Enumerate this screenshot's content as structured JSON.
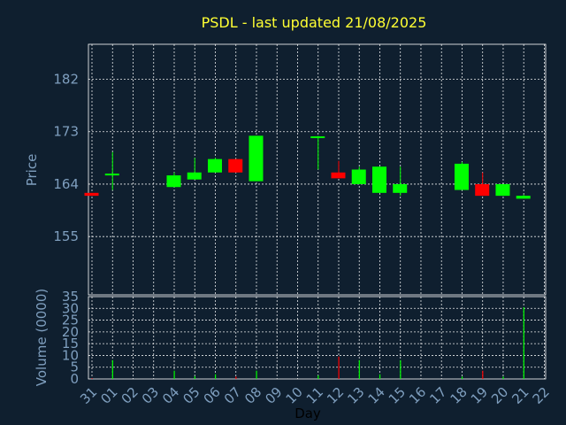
{
  "chart_data": {
    "type": "candlestick",
    "title": "PSDL - last updated 21/08/2025",
    "ylabel": "Price",
    "volume_ylabel": "Volume (0000)",
    "xlabel": "Day",
    "x_ticks": [
      "31",
      "01",
      "02",
      "03",
      "04",
      "05",
      "06",
      "07",
      "08",
      "09",
      "10",
      "11",
      "12",
      "13",
      "14",
      "15",
      "16",
      "17",
      "18",
      "19",
      "20",
      "21",
      "22"
    ],
    "price_ticks": [
      155,
      164,
      173,
      182
    ],
    "price_ylim": [
      145,
      188
    ],
    "volume_ticks": [
      0,
      5,
      10,
      15,
      20,
      25,
      30,
      35
    ],
    "volume_ylim": [
      0,
      35
    ],
    "colors": {
      "up": "#00ff00",
      "down": "#ff0000",
      "background": "#0f1f2f",
      "title": "#ffff33",
      "tick": "#7f9fbf"
    },
    "candles": [
      {
        "day": "31",
        "open": 162.5,
        "high": 162.5,
        "low": 162.0,
        "close": 162.0,
        "volume": 0.3
      },
      {
        "day": "01",
        "open": 165.5,
        "high": 169.5,
        "low": 163.0,
        "close": 165.8,
        "volume": 8.0
      },
      {
        "day": "04",
        "open": 163.5,
        "high": 166.0,
        "low": 163.5,
        "close": 165.5,
        "volume": 3.5
      },
      {
        "day": "05",
        "open": 164.8,
        "high": 168.5,
        "low": 164.8,
        "close": 166.0,
        "volume": 1.2
      },
      {
        "day": "06",
        "open": 166.0,
        "high": 168.5,
        "low": 166.0,
        "close": 168.3,
        "volume": 2.0
      },
      {
        "day": "07",
        "open": 168.3,
        "high": 168.3,
        "low": 166.0,
        "close": 166.0,
        "volume": 1.0
      },
      {
        "day": "08",
        "open": 164.5,
        "high": 172.3,
        "low": 164.5,
        "close": 172.3,
        "volume": 3.5
      },
      {
        "day": "11",
        "open": 172.0,
        "high": 172.3,
        "low": 166.5,
        "close": 172.2,
        "volume": 1.5
      },
      {
        "day": "12",
        "open": 166.0,
        "high": 168.0,
        "low": 165.0,
        "close": 165.0,
        "volume": 9.5
      },
      {
        "day": "13",
        "open": 164.0,
        "high": 167.0,
        "low": 164.0,
        "close": 166.5,
        "volume": 8.0
      },
      {
        "day": "14",
        "open": 162.5,
        "high": 167.0,
        "low": 162.5,
        "close": 167.0,
        "volume": 2.0
      },
      {
        "day": "15",
        "open": 162.5,
        "high": 167.0,
        "low": 162.0,
        "close": 164.0,
        "volume": 8.0
      },
      {
        "day": "18",
        "open": 163.0,
        "high": 167.8,
        "low": 163.0,
        "close": 167.5,
        "volume": 1.0
      },
      {
        "day": "19",
        "open": 164.0,
        "high": 166.0,
        "low": 162.0,
        "close": 162.0,
        "volume": 3.5
      },
      {
        "day": "20",
        "open": 162.0,
        "high": 164.0,
        "low": 162.0,
        "close": 164.0,
        "volume": 1.0
      },
      {
        "day": "21",
        "open": 161.5,
        "high": 162.2,
        "low": 161.5,
        "close": 162.0,
        "volume": 30.5
      }
    ]
  }
}
